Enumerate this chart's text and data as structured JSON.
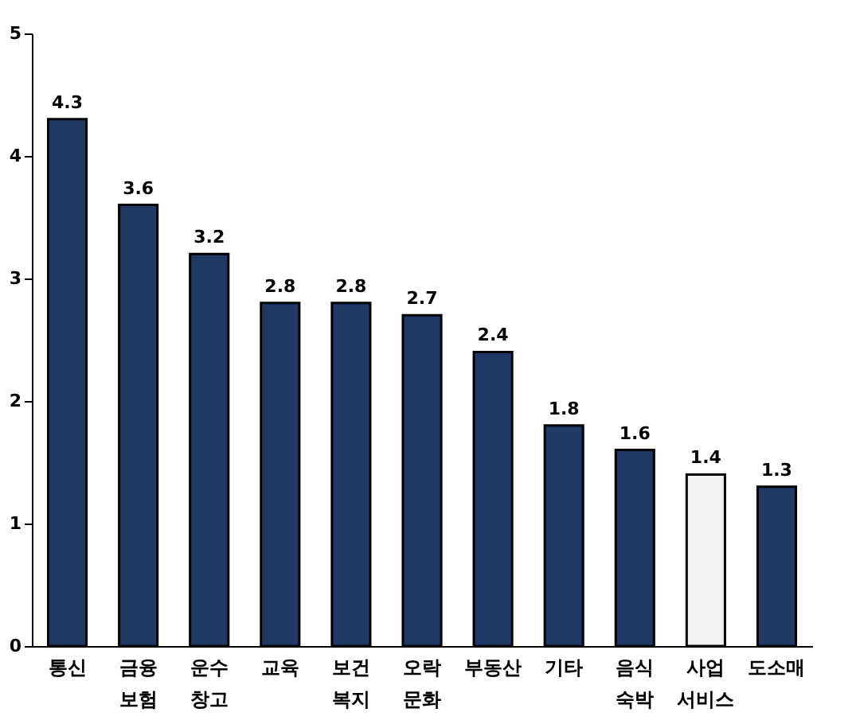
{
  "chart_data": {
    "type": "bar",
    "categories": [
      "통신",
      "금융 보험",
      "운수 창고",
      "교육",
      "보건 복지",
      "오락 문화",
      "부동산",
      "기타",
      "음식 숙박",
      "사업 서비스",
      "도소매"
    ],
    "values": [
      4.3,
      3.6,
      3.2,
      2.8,
      2.8,
      2.7,
      2.4,
      1.8,
      1.6,
      1.4,
      1.3
    ],
    "colors": [
      "#1f3864",
      "#1f3864",
      "#1f3864",
      "#1f3864",
      "#1f3864",
      "#1f3864",
      "#1f3864",
      "#1f3864",
      "#1f3864",
      "#f2f2f2",
      "#1f3864"
    ],
    "ylim": [
      0,
      5
    ],
    "yticks": [
      0,
      1,
      2,
      3,
      4,
      5
    ],
    "grid": false,
    "data_labels": true
  }
}
